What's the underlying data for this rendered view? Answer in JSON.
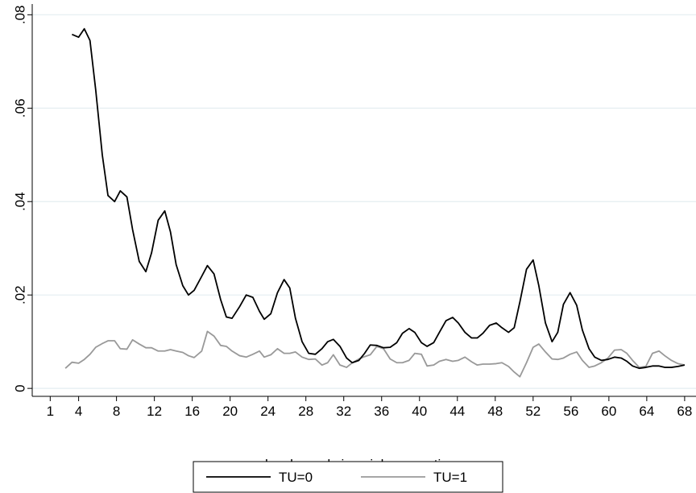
{
  "chart_data": {
    "type": "line",
    "x_label": "weeks elapsed since job separation",
    "x": [
      2.6,
      3.3,
      4.0,
      4.6,
      5.2,
      5.8,
      6.5,
      7.1,
      7.8,
      8.4,
      9.1,
      9.7,
      10.4,
      11.1,
      11.7,
      12.4,
      13.1,
      13.7,
      14.3,
      15,
      15.6,
      16.2,
      17,
      17.6,
      18.3,
      19,
      19.6,
      20.2,
      21,
      21.7,
      22.4,
      23.1,
      23.6,
      24.3,
      25,
      25.7,
      26.3,
      26.9,
      27.6,
      28.3,
      29,
      29.7,
      30.3,
      30.9,
      31.6,
      32.3,
      32.9,
      33.6,
      34.2,
      34.8,
      35.5,
      36.2,
      36.9,
      37.6,
      38.2,
      38.9,
      39.5,
      40.2,
      40.8,
      41.5,
      42.1,
      42.8,
      43.5,
      44.1,
      44.8,
      45.5,
      46.1,
      46.7,
      47.4,
      48.1,
      48.7,
      49.4,
      50,
      50.6,
      51.3,
      52,
      52.6,
      53.3,
      54,
      54.6,
      55.2,
      55.9,
      56.6,
      57.2,
      57.9,
      58.5,
      59.2,
      59.9,
      60.6,
      61.3,
      61.9,
      62.5,
      63.2,
      63.9,
      64.6,
      65.3,
      65.9,
      66.6,
      67.3,
      68
    ],
    "series": [
      {
        "name": "TU=0",
        "color": "#000000",
        "values": [
          null,
          0.0758,
          0.0752,
          0.077,
          0.0745,
          0.064,
          0.05,
          0.0413,
          0.04,
          0.0423,
          0.041,
          0.034,
          0.0272,
          0.025,
          0.029,
          0.036,
          0.038,
          0.0335,
          0.0265,
          0.022,
          0.02,
          0.021,
          0.024,
          0.0263,
          0.0245,
          0.019,
          0.0153,
          0.015,
          0.0175,
          0.02,
          0.0195,
          0.0165,
          0.0148,
          0.016,
          0.0205,
          0.0233,
          0.0215,
          0.015,
          0.01,
          0.0075,
          0.0073,
          0.0085,
          0.01,
          0.0105,
          0.009,
          0.0065,
          0.0055,
          0.006,
          0.0075,
          0.0093,
          0.0092,
          0.0087,
          0.0088,
          0.0098,
          0.0118,
          0.0128,
          0.012,
          0.0098,
          0.009,
          0.0098,
          0.012,
          0.0145,
          0.0152,
          0.014,
          0.012,
          0.0108,
          0.0108,
          0.0118,
          0.0135,
          0.014,
          0.013,
          0.012,
          0.013,
          0.0185,
          0.0255,
          0.0275,
          0.022,
          0.014,
          0.01,
          0.012,
          0.018,
          0.0205,
          0.0178,
          0.0125,
          0.0085,
          0.0067,
          0.006,
          0.0062,
          0.0067,
          0.0065,
          0.0058,
          0.0048,
          0.0043,
          0.0045,
          0.0048,
          0.0048,
          0.0045,
          0.0045,
          0.0047,
          0.005
        ]
      },
      {
        "name": "TU=1",
        "color": "#999999",
        "values": [
          0.0043,
          0.0056,
          0.0054,
          0.0062,
          0.0073,
          0.0088,
          0.0096,
          0.0102,
          0.0102,
          0.0085,
          0.0084,
          0.0104,
          0.0095,
          0.0087,
          0.0087,
          0.008,
          0.008,
          0.0083,
          0.008,
          0.0077,
          0.007,
          0.0066,
          0.008,
          0.0122,
          0.0112,
          0.0092,
          0.009,
          0.008,
          0.007,
          0.0067,
          0.0073,
          0.008,
          0.0067,
          0.0072,
          0.0085,
          0.0075,
          0.0075,
          0.0078,
          0.0067,
          0.0062,
          0.0063,
          0.005,
          0.0055,
          0.0072,
          0.005,
          0.0045,
          0.0055,
          0.0063,
          0.0068,
          0.0072,
          0.009,
          0.0085,
          0.0063,
          0.0055,
          0.0055,
          0.006,
          0.0075,
          0.0073,
          0.0048,
          0.005,
          0.0058,
          0.0062,
          0.0058,
          0.006,
          0.0067,
          0.0057,
          0.005,
          0.0052,
          0.0052,
          0.0053,
          0.0055,
          0.0047,
          0.0035,
          0.0025,
          0.0055,
          0.0088,
          0.0095,
          0.0078,
          0.0063,
          0.0062,
          0.0065,
          0.0073,
          0.0078,
          0.006,
          0.0045,
          0.0048,
          0.0055,
          0.0065,
          0.0082,
          0.0083,
          0.0075,
          0.006,
          0.0045,
          0.0047,
          0.0075,
          0.008,
          0.007,
          0.006,
          0.0053,
          0.005
        ]
      }
    ],
    "xlim": [
      -0.9,
      69.2
    ],
    "ylim": [
      -0.0017,
      0.0823
    ],
    "xticks": [
      1,
      4,
      8,
      12,
      16,
      20,
      24,
      28,
      32,
      36,
      40,
      44,
      48,
      52,
      56,
      60,
      64,
      68
    ],
    "yticks": [
      0,
      {
        "value": 0.02,
        "label": ".02"
      },
      {
        "value": 0.04,
        "label": ".04"
      },
      {
        "value": 0.06,
        "label": ".06"
      },
      {
        "value": 0.08,
        "label": ".08"
      }
    ],
    "grid": true,
    "legend": "bottom"
  }
}
